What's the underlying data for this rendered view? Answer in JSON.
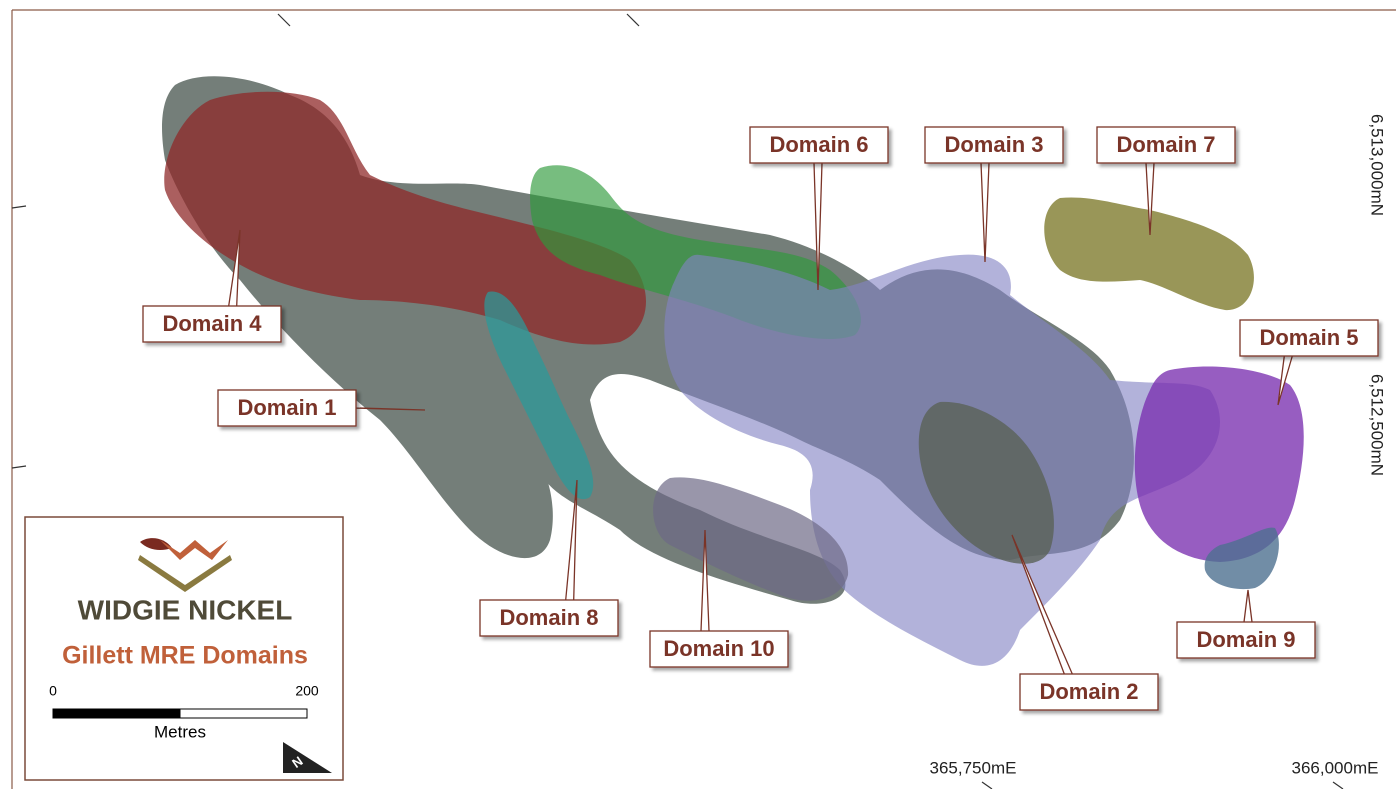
{
  "legend": {
    "company": "WIDGIE NICKEL",
    "title": "Gillett MRE Domains",
    "scale": {
      "start": 0,
      "end": 200,
      "unit": "Metres"
    },
    "north": "N"
  },
  "domains": [
    {
      "label": "Domain 1"
    },
    {
      "label": "Domain 2"
    },
    {
      "label": "Domain 3"
    },
    {
      "label": "Domain 4"
    },
    {
      "label": "Domain 5"
    },
    {
      "label": "Domain 6"
    },
    {
      "label": "Domain 7"
    },
    {
      "label": "Domain 8"
    },
    {
      "label": "Domain 9"
    },
    {
      "label": "Domain 10"
    }
  ],
  "grid_labels": {
    "northings": [
      "6,513,000mN",
      "6,512,500mN"
    ],
    "eastings": [
      "365,750mE",
      "366,000mE"
    ]
  }
}
